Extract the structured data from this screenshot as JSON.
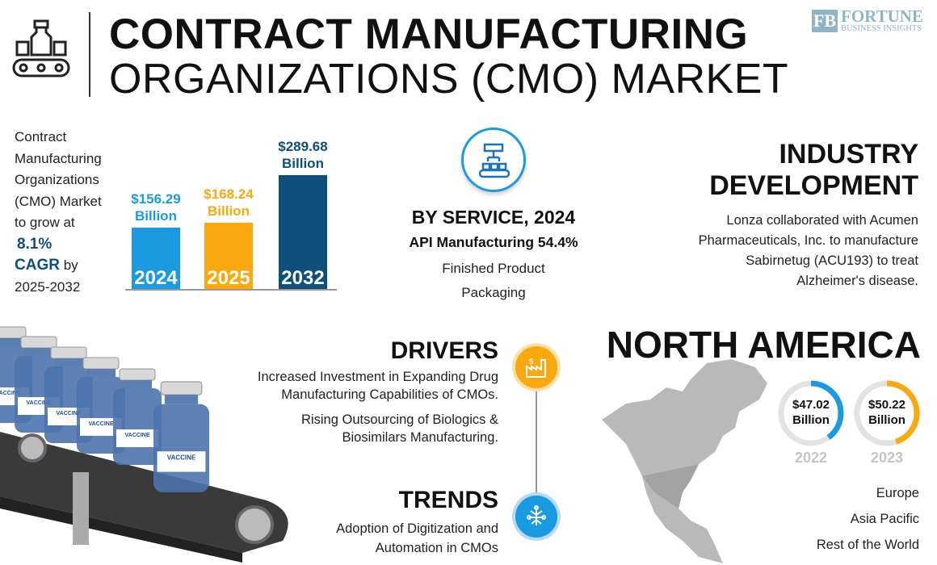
{
  "header": {
    "title_line1": "CONTRACT MANUFACTURING",
    "title_line2": "ORGANIZATIONS (CMO) MARKET",
    "logo_name": "FORTUNE",
    "logo_sub": "BUSINESS INSIGHTS",
    "logo_mark": "FB",
    "icon": "pharma-production-line-icon"
  },
  "intro": {
    "text": "Contract Manufacturing Organizations (CMO) Market to grow at",
    "cagr_value": "8.1%",
    "cagr_label": "CAGR",
    "by": "by",
    "period": "2025-2032"
  },
  "chart_data": [
    {
      "type": "bar",
      "categories": [
        "2024",
        "2025",
        "2032"
      ],
      "values": [
        156.29,
        168.24,
        289.68
      ],
      "labels": [
        "$156.29",
        "$168.24",
        "$289.68"
      ],
      "unit": "Billion",
      "colors": [
        "#1a9ae0",
        "#f9a80f",
        "#0e4f7c"
      ]
    },
    {
      "type": "pie",
      "title": "NORTH AMERICA",
      "series": [
        {
          "category": "2022",
          "label": "$47.02",
          "unit": "Billion",
          "fill_fraction": 0.4,
          "color": "#1a9ae0"
        },
        {
          "category": "2023",
          "label": "$50.22",
          "unit": "Billion",
          "fill_fraction": 0.45,
          "color": "#f9a80f"
        }
      ]
    }
  ],
  "service": {
    "icon": "conveyor-robot-arm-icon",
    "title": "BY SERVICE, 2024",
    "leading": "API Manufacturing 54.4%",
    "items": [
      "Finished Product",
      "Packaging"
    ]
  },
  "industry": {
    "title1": "INDUSTRY",
    "title2": "DEVELOPMENT",
    "lines": [
      "Lonza collaborated with Acumen",
      "Pharmaceuticals, Inc. to manufacture",
      "Sabirnetug (ACU193) to treat",
      "Alzheimer's disease."
    ]
  },
  "region": {
    "title": "NORTH AMERICA",
    "others": [
      "Europe",
      "Asia Pacific",
      "Rest of the World"
    ]
  },
  "drivers": {
    "title": "DRIVERS",
    "icon": "factory-money-icon",
    "items": [
      [
        "Increased Investment in Expanding Drug",
        "Manufacturing Capabilities of CMOs."
      ],
      [
        "Rising Outsourcing of Biologics &",
        "Biosimilars Manufacturing."
      ]
    ]
  },
  "trends": {
    "title": "TRENDS",
    "icon": "digital-brain-icon",
    "lines": [
      "Adoption of Digitization and",
      "Automation in CMOs"
    ]
  },
  "illustration": {
    "vial_label": "VACCINE"
  },
  "colors": {
    "blue": "#1a9ae0",
    "orange": "#f9a80f",
    "navy": "#0e4f7c"
  }
}
